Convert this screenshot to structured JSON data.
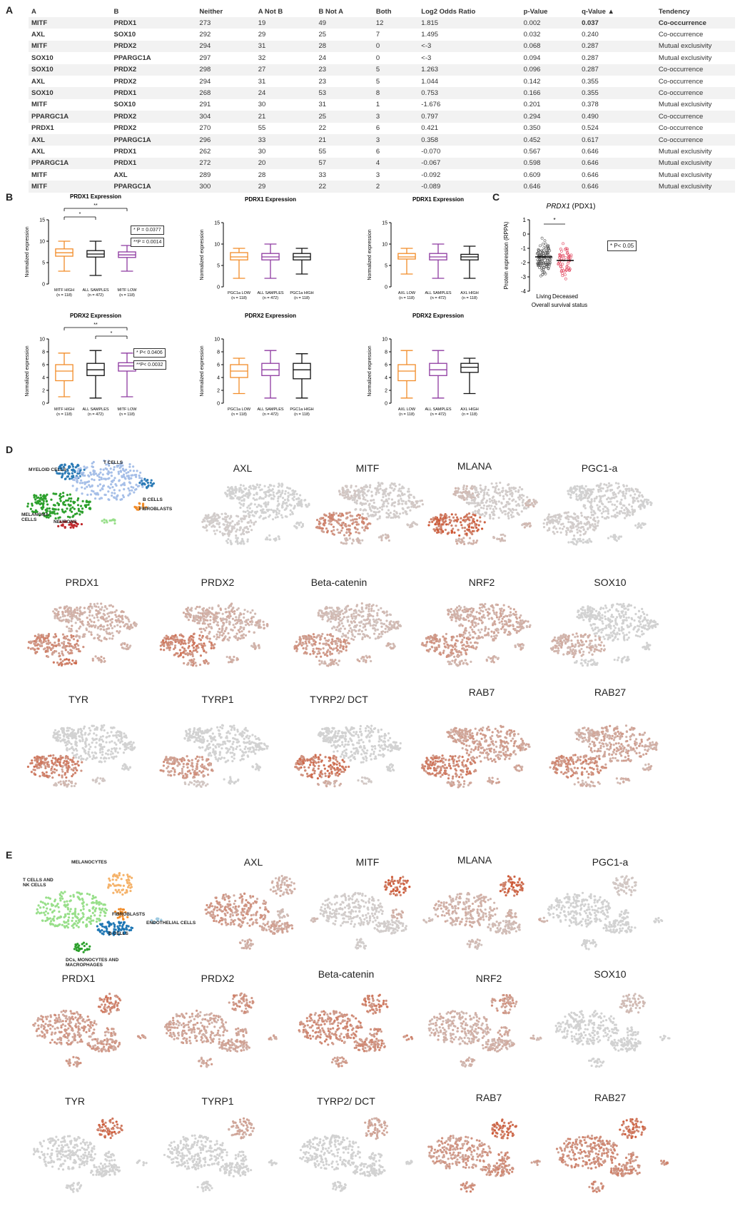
{
  "panels": {
    "a": "A",
    "b": "B",
    "c": "C",
    "d": "D",
    "e": "E"
  },
  "table": {
    "headers": [
      "A",
      "B",
      "Neither",
      "A Not B",
      "B Not A",
      "Both",
      "Log2 Odds Ratio",
      "p-Value",
      "q-Value ▲",
      "Tendency"
    ],
    "rows": [
      [
        "MITF",
        "PRDX1",
        "273",
        "19",
        "49",
        "12",
        "1.815",
        "0.002",
        "0.037",
        "Co-occurrence"
      ],
      [
        "AXL",
        "SOX10",
        "292",
        "29",
        "25",
        "7",
        "1.495",
        "0.032",
        "0.240",
        "Co-occurrence"
      ],
      [
        "MITF",
        "PRDX2",
        "294",
        "31",
        "28",
        "0",
        "<-3",
        "0.068",
        "0.287",
        "Mutual exclusivity"
      ],
      [
        "SOX10",
        "PPARGC1A",
        "297",
        "32",
        "24",
        "0",
        "<-3",
        "0.094",
        "0.287",
        "Mutual exclusivity"
      ],
      [
        "SOX10",
        "PRDX2",
        "298",
        "27",
        "23",
        "5",
        "1.263",
        "0.096",
        "0.287",
        "Co-occurrence"
      ],
      [
        "AXL",
        "PRDX2",
        "294",
        "31",
        "23",
        "5",
        "1.044",
        "0.142",
        "0.355",
        "Co-occurrence"
      ],
      [
        "SOX10",
        "PRDX1",
        "268",
        "24",
        "53",
        "8",
        "0.753",
        "0.166",
        "0.355",
        "Co-occurrence"
      ],
      [
        "MITF",
        "SOX10",
        "291",
        "30",
        "31",
        "1",
        "-1.676",
        "0.201",
        "0.378",
        "Mutual exclusivity"
      ],
      [
        "PPARGC1A",
        "PRDX2",
        "304",
        "21",
        "25",
        "3",
        "0.797",
        "0.294",
        "0.490",
        "Co-occurrence"
      ],
      [
        "PRDX1",
        "PRDX2",
        "270",
        "55",
        "22",
        "6",
        "0.421",
        "0.350",
        "0.524",
        "Co-occurrence"
      ],
      [
        "AXL",
        "PPARGC1A",
        "296",
        "33",
        "21",
        "3",
        "0.358",
        "0.452",
        "0.617",
        "Co-occurrence"
      ],
      [
        "AXL",
        "PRDX1",
        "262",
        "30",
        "55",
        "6",
        "-0.070",
        "0.567",
        "0.646",
        "Mutual exclusivity"
      ],
      [
        "PPARGC1A",
        "PRDX1",
        "272",
        "20",
        "57",
        "4",
        "-0.067",
        "0.598",
        "0.646",
        "Mutual exclusivity"
      ],
      [
        "MITF",
        "AXL",
        "289",
        "28",
        "33",
        "3",
        "-0.092",
        "0.609",
        "0.646",
        "Mutual exclusivity"
      ],
      [
        "MITF",
        "PPARGC1A",
        "300",
        "29",
        "22",
        "2",
        "-0.089",
        "0.646",
        "0.646",
        "Mutual exclusivity"
      ]
    ]
  },
  "chart_data": [
    {
      "type": "box",
      "title": "PRDX1 Expression",
      "ylabel": "Normalized expression",
      "ylim": [
        0,
        15
      ],
      "yticks": [
        0,
        5,
        10,
        15
      ],
      "categories": [
        "MITF HIGH",
        "ALL SAMPLES",
        "MITF LOW"
      ],
      "ns": [
        "(n = 118)",
        "(n = 472)",
        "(n = 118)"
      ],
      "boxes": [
        [
          3,
          6.5,
          7.3,
          8.2,
          10
        ],
        [
          2,
          6.3,
          7,
          7.8,
          10
        ],
        [
          3,
          6.2,
          6.8,
          7.5,
          9
        ]
      ],
      "colors": [
        "#f28c28",
        "#111111",
        "#8e3aa0"
      ],
      "sig": [
        {
          "a": 0,
          "b": 1,
          "label": "*",
          "level": 1
        },
        {
          "a": 0,
          "b": 2,
          "label": "**",
          "level": 2
        }
      ],
      "pvals": [
        "* P = 0.0377",
        "**P = 0.0014"
      ]
    },
    {
      "type": "box",
      "title": "PDRX1 Expression",
      "ylabel": "Normalized expression",
      "ylim": [
        0,
        15
      ],
      "yticks": [
        0,
        5,
        10,
        15
      ],
      "categories": [
        "PGC1a LOW",
        "ALL SAMPLES",
        "PGC1a HIGH"
      ],
      "ns": [
        "(n = 118)",
        "(n = 472)",
        "(n = 118)"
      ],
      "boxes": [
        [
          2,
          6.3,
          7,
          8,
          9
        ],
        [
          2,
          6.3,
          7,
          7.8,
          10
        ],
        [
          3,
          6.3,
          7,
          7.8,
          9
        ]
      ],
      "colors": [
        "#f28c28",
        "#8e3aa0",
        "#111111"
      ],
      "sig": [],
      "pvals": []
    },
    {
      "type": "box",
      "title": "PDRX1 Expression",
      "ylabel": "Normalized expression",
      "ylim": [
        0,
        15
      ],
      "yticks": [
        0,
        5,
        10,
        15
      ],
      "categories": [
        "AXL LOW",
        "ALL SAMPLES",
        "AXL HIGH"
      ],
      "ns": [
        "(n = 118)",
        "(n = 472)",
        "(n = 118)"
      ],
      "boxes": [
        [
          3,
          6.5,
          7,
          7.8,
          9
        ],
        [
          2,
          6.3,
          7,
          7.8,
          10
        ],
        [
          2,
          6.3,
          7,
          7.6,
          9.5
        ]
      ],
      "colors": [
        "#f28c28",
        "#8e3aa0",
        "#111111"
      ],
      "sig": [],
      "pvals": []
    },
    {
      "type": "box",
      "title": "PDRX2 Expression",
      "ylabel": "Normalized expression",
      "ylim": [
        0,
        10
      ],
      "yticks": [
        0,
        2,
        4,
        6,
        8,
        10
      ],
      "categories": [
        "MITF HIGH",
        "ALL SAMPLES",
        "MITF LOW"
      ],
      "ns": [
        "(n = 118)",
        "(n = 472)",
        "(n = 118)"
      ],
      "boxes": [
        [
          1,
          3.5,
          5,
          6,
          7.8
        ],
        [
          0.8,
          4.3,
          5.2,
          6.2,
          8.2
        ],
        [
          1,
          5,
          5.8,
          6.3,
          7.8
        ]
      ],
      "colors": [
        "#f28c28",
        "#111111",
        "#8e3aa0"
      ],
      "sig": [
        {
          "a": 1,
          "b": 2,
          "label": "*",
          "level": 1
        },
        {
          "a": 0,
          "b": 2,
          "label": "**",
          "level": 2
        }
      ],
      "pvals": [
        "* P< 0.0406",
        "**P< 0.0032"
      ]
    },
    {
      "type": "box",
      "title": "PDRX2 Expression",
      "ylabel": "Normalized expression",
      "ylim": [
        0,
        10
      ],
      "yticks": [
        0,
        2,
        4,
        6,
        8,
        10
      ],
      "categories": [
        "PGC1a LOW",
        "ALL SAMPLES",
        "PGC1a HIGH"
      ],
      "ns": [
        "(n = 118)",
        "(n = 472)",
        "(n = 118)"
      ],
      "boxes": [
        [
          1.5,
          4,
          5,
          6,
          7
        ],
        [
          0.8,
          4.3,
          5.2,
          6.2,
          8.2
        ],
        [
          0.8,
          3.8,
          5.2,
          6.2,
          7.7
        ]
      ],
      "colors": [
        "#f28c28",
        "#8e3aa0",
        "#111111"
      ],
      "sig": [],
      "pvals": []
    },
    {
      "type": "box",
      "title": "PDRX2 Expression",
      "ylabel": "Normalized expression",
      "ylim": [
        0,
        10
      ],
      "yticks": [
        0,
        2,
        4,
        6,
        8,
        10
      ],
      "categories": [
        "AXL LOW",
        "ALL SAMPLES",
        "AXL HIGH"
      ],
      "ns": [
        "(n = 118)",
        "(n = 472)",
        "(n = 118)"
      ],
      "boxes": [
        [
          0.8,
          3.5,
          5,
          6,
          8.2
        ],
        [
          0.8,
          4.3,
          5.2,
          6.2,
          8.2
        ],
        [
          1.5,
          4.8,
          5.6,
          6.2,
          7
        ]
      ],
      "colors": [
        "#f28c28",
        "#8e3aa0",
        "#111111"
      ],
      "sig": [],
      "pvals": []
    },
    {
      "type": "scatter",
      "title": "PRDX1 (PDX1)",
      "title_gene": "PRDX1",
      "title_rest": " (PDX1)",
      "ylabel": "Protein expression (RPPA)",
      "xlabel": "Overall survival status",
      "ylim": [
        -4,
        1
      ],
      "yticks": [
        1,
        0,
        -1,
        -2,
        -3,
        -4
      ],
      "categories": [
        "Living",
        "Deceased"
      ],
      "medians": [
        -1.6,
        -1.85
      ],
      "colors": [
        "#555555",
        "#e0405a"
      ],
      "sig": "*",
      "pval": "* P< 0.05"
    }
  ],
  "tsne_d": {
    "ref_labels": [
      "MYELOID CELLS",
      "T CELLS",
      "MELANOMA CELLS",
      "NEURONS",
      "B CELLS",
      "FIBROBLASTS"
    ],
    "genes": [
      "AXL",
      "MITF",
      "MLANA",
      "PGC1-a",
      "PRDX1",
      "PRDX2",
      "Beta-catenin",
      "NRF2",
      "SOX10",
      "TYR",
      "TYRP1",
      "TYRP2/ DCT",
      "RAB7",
      "RAB27"
    ]
  },
  "tsne_e": {
    "ref_labels": [
      "MELANOCYTES",
      "T CELLS AND NK CELLS",
      "FIBROBLASTS",
      "ENDOTHELIAL CELLS",
      "B CELLS",
      "DCs, MONOCYTES AND MACROPHAGES"
    ],
    "genes": [
      "AXL",
      "MITF",
      "MLANA",
      "PGC1-a",
      "PRDX1",
      "PRDX2",
      "Beta-catenin",
      "NRF2",
      "SOX10",
      "TYR",
      "TYRP1",
      "TYRP2/ DCT",
      "RAB7",
      "RAB27"
    ]
  }
}
